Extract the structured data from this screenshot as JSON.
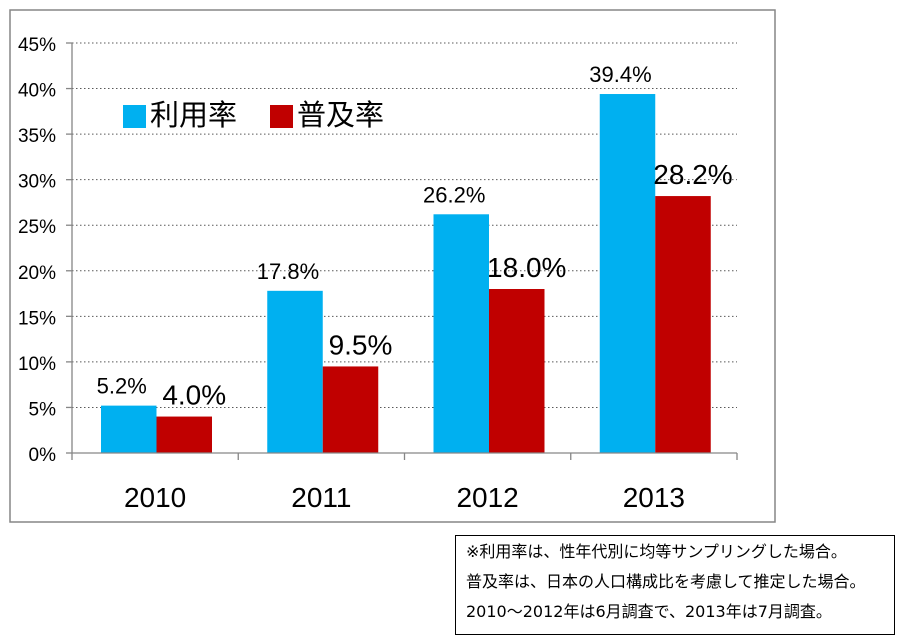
{
  "chart_data": {
    "type": "bar",
    "categories": [
      "2010",
      "2011",
      "2012",
      "2013"
    ],
    "series": [
      {
        "name": "利用率",
        "values": [
          5.2,
          17.8,
          26.2,
          39.4
        ],
        "data_labels": [
          "5.2%",
          "17.8%",
          "26.2%",
          "39.4%"
        ],
        "color": "#00B0F0"
      },
      {
        "name": "普及率",
        "values": [
          4.0,
          9.5,
          18.0,
          28.2
        ],
        "data_labels": [
          "4.0%",
          "9.5%",
          "18.0%",
          "28.2%"
        ],
        "color": "#C00000"
      }
    ],
    "ylim": [
      0,
      45
    ],
    "y_ticks": [
      0,
      5,
      10,
      15,
      20,
      25,
      30,
      35,
      40,
      45
    ],
    "y_tick_labels": [
      "0%",
      "5%",
      "10%",
      "15%",
      "20%",
      "25%",
      "30%",
      "35%",
      "40%",
      "45%"
    ],
    "grid": true,
    "legend": "top-left"
  },
  "note": {
    "lines": [
      "※利用率は、性年代別に均等サンプリングした場合。",
      "普及率は、日本の人口構成比を考慮して推定した場合。",
      "2010～2012年は6月調査で、2013年は7月調査。"
    ]
  }
}
